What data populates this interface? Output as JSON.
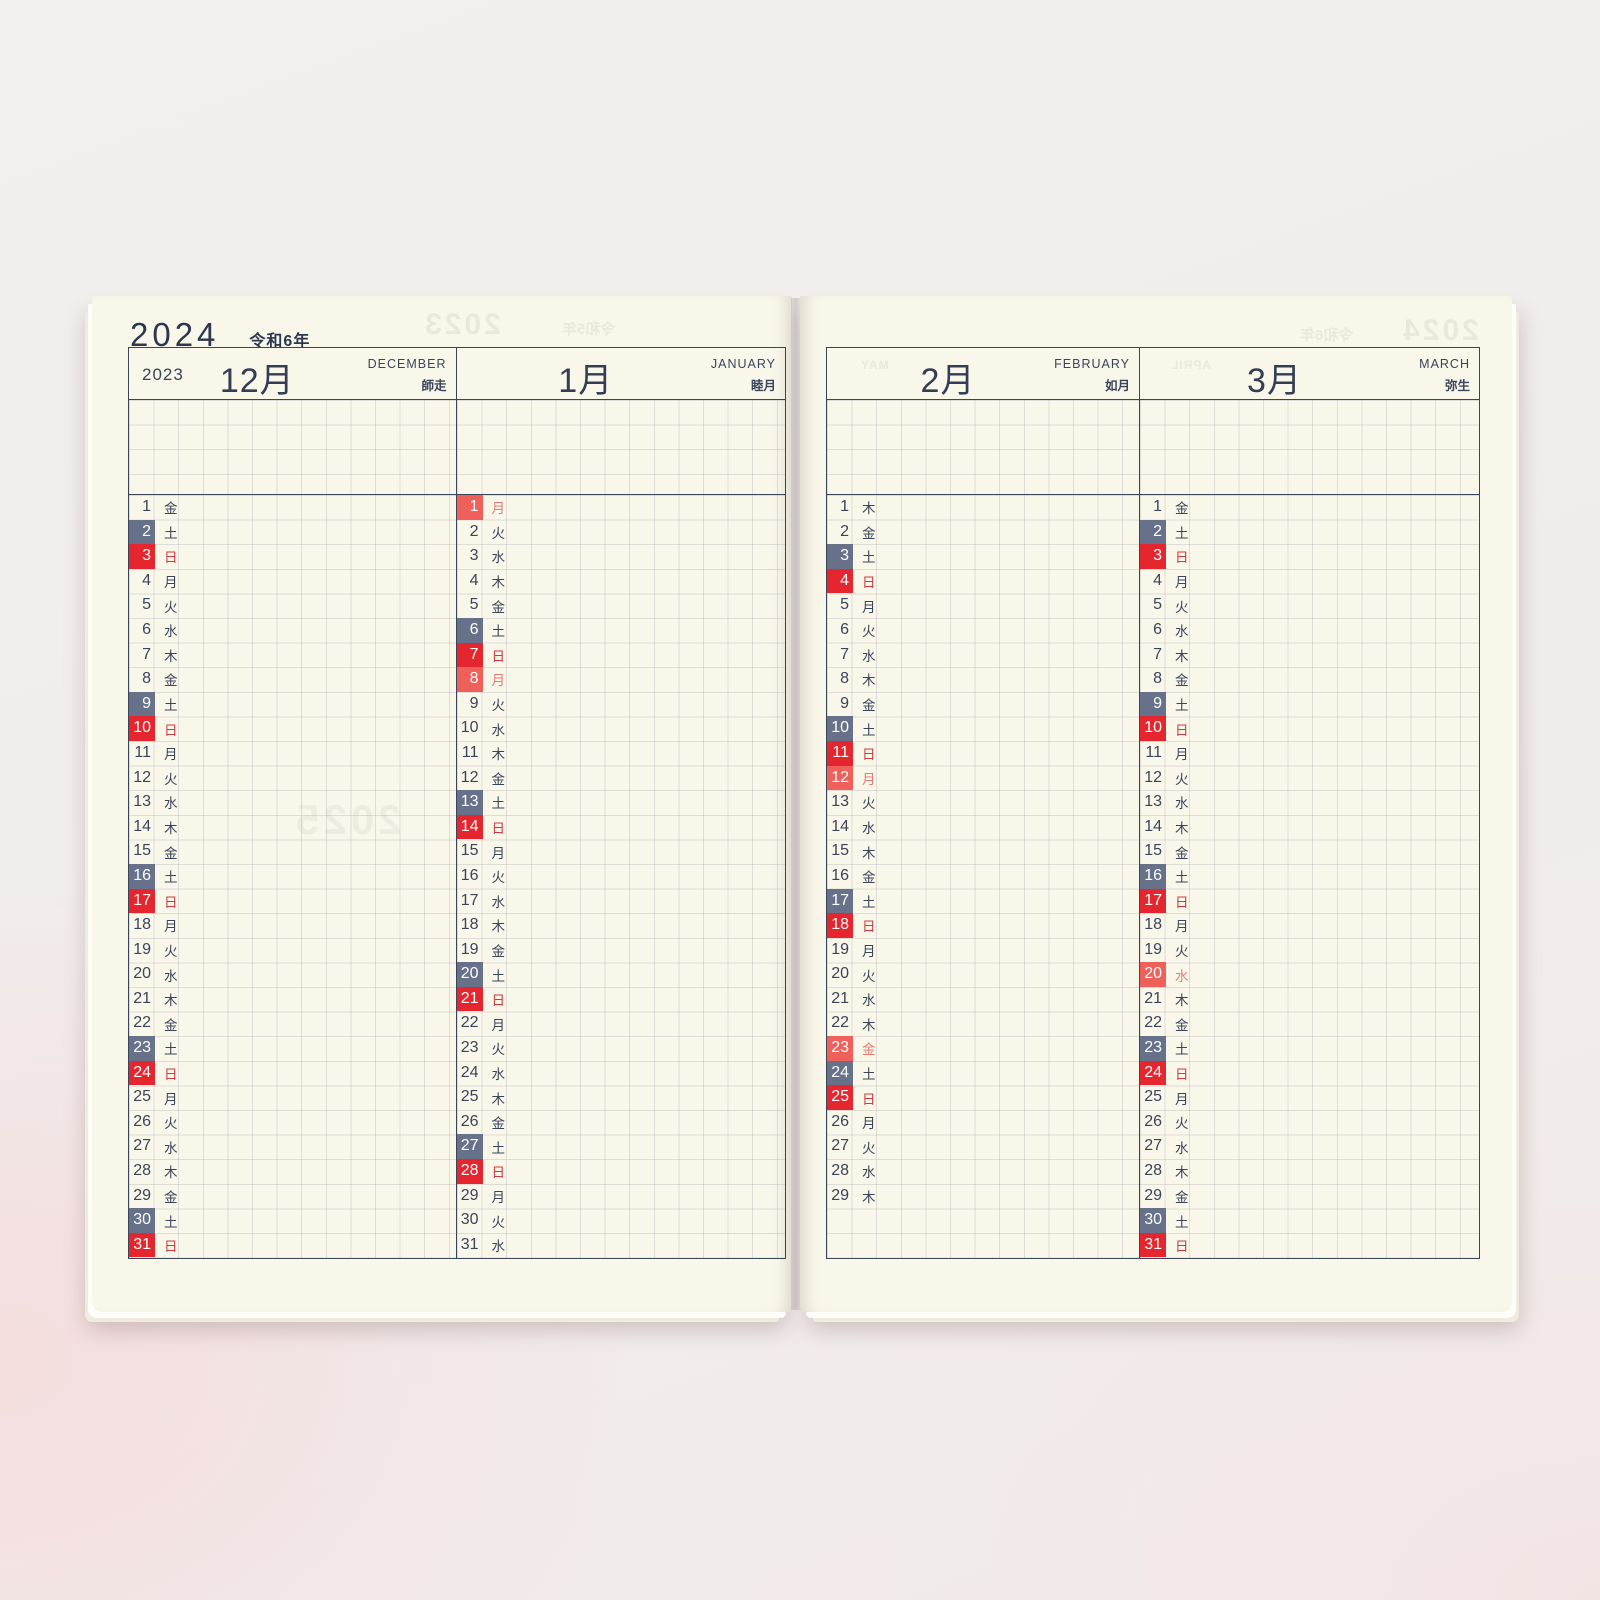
{
  "book": {
    "year_label": "2024",
    "era_label": "令和6年",
    "left_page": {
      "months": [
        {
          "year_note": "2023",
          "month_label": "12月",
          "english": "DECEMBER",
          "wago": "師走",
          "days": [
            {
              "d": 1,
              "w": "金",
              "t": "n"
            },
            {
              "d": 2,
              "w": "土",
              "t": "sat"
            },
            {
              "d": 3,
              "w": "日",
              "t": "sun"
            },
            {
              "d": 4,
              "w": "月",
              "t": "n"
            },
            {
              "d": 5,
              "w": "火",
              "t": "n"
            },
            {
              "d": 6,
              "w": "水",
              "t": "n"
            },
            {
              "d": 7,
              "w": "木",
              "t": "n"
            },
            {
              "d": 8,
              "w": "金",
              "t": "n"
            },
            {
              "d": 9,
              "w": "土",
              "t": "sat"
            },
            {
              "d": 10,
              "w": "日",
              "t": "sun"
            },
            {
              "d": 11,
              "w": "月",
              "t": "n"
            },
            {
              "d": 12,
              "w": "火",
              "t": "n"
            },
            {
              "d": 13,
              "w": "水",
              "t": "n"
            },
            {
              "d": 14,
              "w": "木",
              "t": "n"
            },
            {
              "d": 15,
              "w": "金",
              "t": "n"
            },
            {
              "d": 16,
              "w": "土",
              "t": "sat"
            },
            {
              "d": 17,
              "w": "日",
              "t": "sun"
            },
            {
              "d": 18,
              "w": "月",
              "t": "n"
            },
            {
              "d": 19,
              "w": "火",
              "t": "n"
            },
            {
              "d": 20,
              "w": "水",
              "t": "n"
            },
            {
              "d": 21,
              "w": "木",
              "t": "n"
            },
            {
              "d": 22,
              "w": "金",
              "t": "n"
            },
            {
              "d": 23,
              "w": "土",
              "t": "sat"
            },
            {
              "d": 24,
              "w": "日",
              "t": "sun"
            },
            {
              "d": 25,
              "w": "月",
              "t": "n"
            },
            {
              "d": 26,
              "w": "火",
              "t": "n"
            },
            {
              "d": 27,
              "w": "水",
              "t": "n"
            },
            {
              "d": 28,
              "w": "木",
              "t": "n"
            },
            {
              "d": 29,
              "w": "金",
              "t": "n"
            },
            {
              "d": 30,
              "w": "土",
              "t": "sat"
            },
            {
              "d": 31,
              "w": "日",
              "t": "sun"
            }
          ]
        },
        {
          "year_note": "",
          "month_label": "1月",
          "english": "JANUARY",
          "wago": "睦月",
          "days": [
            {
              "d": 1,
              "w": "月",
              "t": "hol"
            },
            {
              "d": 2,
              "w": "火",
              "t": "n"
            },
            {
              "d": 3,
              "w": "水",
              "t": "n"
            },
            {
              "d": 4,
              "w": "木",
              "t": "n"
            },
            {
              "d": 5,
              "w": "金",
              "t": "n"
            },
            {
              "d": 6,
              "w": "土",
              "t": "sat"
            },
            {
              "d": 7,
              "w": "日",
              "t": "sun"
            },
            {
              "d": 8,
              "w": "月",
              "t": "hol"
            },
            {
              "d": 9,
              "w": "火",
              "t": "n"
            },
            {
              "d": 10,
              "w": "水",
              "t": "n"
            },
            {
              "d": 11,
              "w": "木",
              "t": "n"
            },
            {
              "d": 12,
              "w": "金",
              "t": "n"
            },
            {
              "d": 13,
              "w": "土",
              "t": "sat"
            },
            {
              "d": 14,
              "w": "日",
              "t": "sun"
            },
            {
              "d": 15,
              "w": "月",
              "t": "n"
            },
            {
              "d": 16,
              "w": "火",
              "t": "n"
            },
            {
              "d": 17,
              "w": "水",
              "t": "n"
            },
            {
              "d": 18,
              "w": "木",
              "t": "n"
            },
            {
              "d": 19,
              "w": "金",
              "t": "n"
            },
            {
              "d": 20,
              "w": "土",
              "t": "sat"
            },
            {
              "d": 21,
              "w": "日",
              "t": "sun"
            },
            {
              "d": 22,
              "w": "月",
              "t": "n"
            },
            {
              "d": 23,
              "w": "火",
              "t": "n"
            },
            {
              "d": 24,
              "w": "水",
              "t": "n"
            },
            {
              "d": 25,
              "w": "木",
              "t": "n"
            },
            {
              "d": 26,
              "w": "金",
              "t": "n"
            },
            {
              "d": 27,
              "w": "土",
              "t": "sat"
            },
            {
              "d": 28,
              "w": "日",
              "t": "sun"
            },
            {
              "d": 29,
              "w": "月",
              "t": "n"
            },
            {
              "d": 30,
              "w": "火",
              "t": "n"
            },
            {
              "d": 31,
              "w": "水",
              "t": "n"
            }
          ]
        }
      ]
    },
    "right_page": {
      "months": [
        {
          "year_note": "",
          "month_label": "2月",
          "english": "FEBRUARY",
          "wago": "如月",
          "days": [
            {
              "d": 1,
              "w": "木",
              "t": "n"
            },
            {
              "d": 2,
              "w": "金",
              "t": "n"
            },
            {
              "d": 3,
              "w": "土",
              "t": "sat"
            },
            {
              "d": 4,
              "w": "日",
              "t": "sun"
            },
            {
              "d": 5,
              "w": "月",
              "t": "n"
            },
            {
              "d": 6,
              "w": "火",
              "t": "n"
            },
            {
              "d": 7,
              "w": "水",
              "t": "n"
            },
            {
              "d": 8,
              "w": "木",
              "t": "n"
            },
            {
              "d": 9,
              "w": "金",
              "t": "n"
            },
            {
              "d": 10,
              "w": "土",
              "t": "sat"
            },
            {
              "d": 11,
              "w": "日",
              "t": "sun"
            },
            {
              "d": 12,
              "w": "月",
              "t": "hol"
            },
            {
              "d": 13,
              "w": "火",
              "t": "n"
            },
            {
              "d": 14,
              "w": "水",
              "t": "n"
            },
            {
              "d": 15,
              "w": "木",
              "t": "n"
            },
            {
              "d": 16,
              "w": "金",
              "t": "n"
            },
            {
              "d": 17,
              "w": "土",
              "t": "sat"
            },
            {
              "d": 18,
              "w": "日",
              "t": "sun"
            },
            {
              "d": 19,
              "w": "月",
              "t": "n"
            },
            {
              "d": 20,
              "w": "火",
              "t": "n"
            },
            {
              "d": 21,
              "w": "水",
              "t": "n"
            },
            {
              "d": 22,
              "w": "木",
              "t": "n"
            },
            {
              "d": 23,
              "w": "金",
              "t": "hol"
            },
            {
              "d": 24,
              "w": "土",
              "t": "sat"
            },
            {
              "d": 25,
              "w": "日",
              "t": "sun"
            },
            {
              "d": 26,
              "w": "月",
              "t": "n"
            },
            {
              "d": 27,
              "w": "火",
              "t": "n"
            },
            {
              "d": 28,
              "w": "水",
              "t": "n"
            },
            {
              "d": 29,
              "w": "木",
              "t": "n"
            }
          ]
        },
        {
          "year_note": "",
          "month_label": "3月",
          "english": "MARCH",
          "wago": "弥生",
          "days": [
            {
              "d": 1,
              "w": "金",
              "t": "n"
            },
            {
              "d": 2,
              "w": "土",
              "t": "sat"
            },
            {
              "d": 3,
              "w": "日",
              "t": "sun"
            },
            {
              "d": 4,
              "w": "月",
              "t": "n"
            },
            {
              "d": 5,
              "w": "火",
              "t": "n"
            },
            {
              "d": 6,
              "w": "水",
              "t": "n"
            },
            {
              "d": 7,
              "w": "木",
              "t": "n"
            },
            {
              "d": 8,
              "w": "金",
              "t": "n"
            },
            {
              "d": 9,
              "w": "土",
              "t": "sat"
            },
            {
              "d": 10,
              "w": "日",
              "t": "sun"
            },
            {
              "d": 11,
              "w": "月",
              "t": "n"
            },
            {
              "d": 12,
              "w": "火",
              "t": "n"
            },
            {
              "d": 13,
              "w": "水",
              "t": "n"
            },
            {
              "d": 14,
              "w": "木",
              "t": "n"
            },
            {
              "d": 15,
              "w": "金",
              "t": "n"
            },
            {
              "d": 16,
              "w": "土",
              "t": "sat"
            },
            {
              "d": 17,
              "w": "日",
              "t": "sun"
            },
            {
              "d": 18,
              "w": "月",
              "t": "n"
            },
            {
              "d": 19,
              "w": "火",
              "t": "n"
            },
            {
              "d": 20,
              "w": "水",
              "t": "hol"
            },
            {
              "d": 21,
              "w": "木",
              "t": "n"
            },
            {
              "d": 22,
              "w": "金",
              "t": "n"
            },
            {
              "d": 23,
              "w": "土",
              "t": "sat"
            },
            {
              "d": 24,
              "w": "日",
              "t": "sun"
            },
            {
              "d": 25,
              "w": "月",
              "t": "n"
            },
            {
              "d": 26,
              "w": "火",
              "t": "n"
            },
            {
              "d": 27,
              "w": "水",
              "t": "n"
            },
            {
              "d": 28,
              "w": "木",
              "t": "n"
            },
            {
              "d": 29,
              "w": "金",
              "t": "n"
            },
            {
              "d": 30,
              "w": "土",
              "t": "sat"
            },
            {
              "d": 31,
              "w": "日",
              "t": "sun"
            }
          ]
        }
      ]
    },
    "ghosts": {
      "left_top_year": "2023",
      "left_top_era": "令和5年",
      "left_mid_year": "2025",
      "right_top_year": "2024",
      "right_top_era": "令和6年",
      "feb_showthrough": "MAY",
      "mar_showthrough": "APRIL"
    },
    "colors": {
      "saturday_box": "#68718a",
      "sunday_box": "#e6262e",
      "holiday_box": "#ef605b",
      "ink": "#3a445a",
      "sunday_text": "#d23840",
      "holiday_text": "#e87a74",
      "paper": "#f9f6ea"
    },
    "legend_types": {
      "n": "weekday",
      "sat": "saturday",
      "sun": "sunday",
      "hol": "public-holiday"
    }
  }
}
